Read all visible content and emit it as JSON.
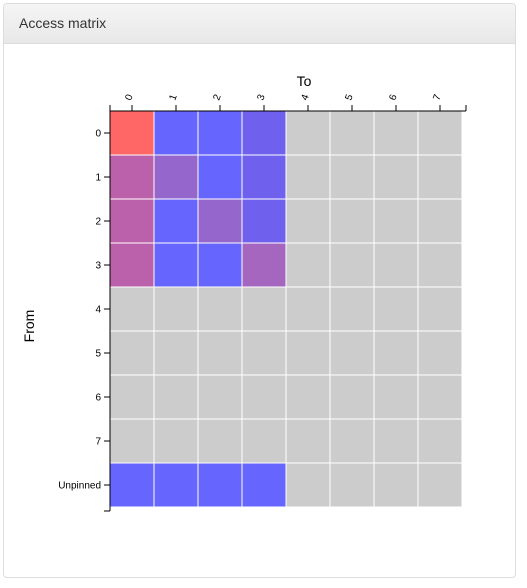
{
  "panel": {
    "title": "Access matrix"
  },
  "chart_data": {
    "type": "heatmap",
    "xlabel": "To",
    "ylabel": "From",
    "x_categories": [
      "0",
      "1",
      "2",
      "3",
      "4",
      "5",
      "6",
      "7"
    ],
    "y_categories": [
      "0",
      "1",
      "2",
      "3",
      "4",
      "5",
      "6",
      "7",
      "Unpinned"
    ],
    "colors": {
      "empty": "#cccccc",
      "grid_line": "#ffffff",
      "axis": "#000000"
    },
    "cells": [
      [
        "#ff6666",
        "#6666ff",
        "#6666ff",
        "#7060ee",
        null,
        null,
        null,
        null
      ],
      [
        "#bb60aa",
        "#9566cc",
        "#6666ff",
        "#7060ee",
        null,
        null,
        null,
        null
      ],
      [
        "#bb60aa",
        "#6666ff",
        "#9566cc",
        "#7060ee",
        null,
        null,
        null,
        null
      ],
      [
        "#bb60aa",
        "#6666ff",
        "#6666ff",
        "#a566c0",
        null,
        null,
        null,
        null
      ],
      [
        null,
        null,
        null,
        null,
        null,
        null,
        null,
        null
      ],
      [
        null,
        null,
        null,
        null,
        null,
        null,
        null,
        null
      ],
      [
        null,
        null,
        null,
        null,
        null,
        null,
        null,
        null
      ],
      [
        null,
        null,
        null,
        null,
        null,
        null,
        null,
        null
      ],
      [
        "#6666ff",
        "#6666ff",
        "#6666ff",
        "#6666ff",
        null,
        null,
        null,
        null
      ]
    ]
  }
}
